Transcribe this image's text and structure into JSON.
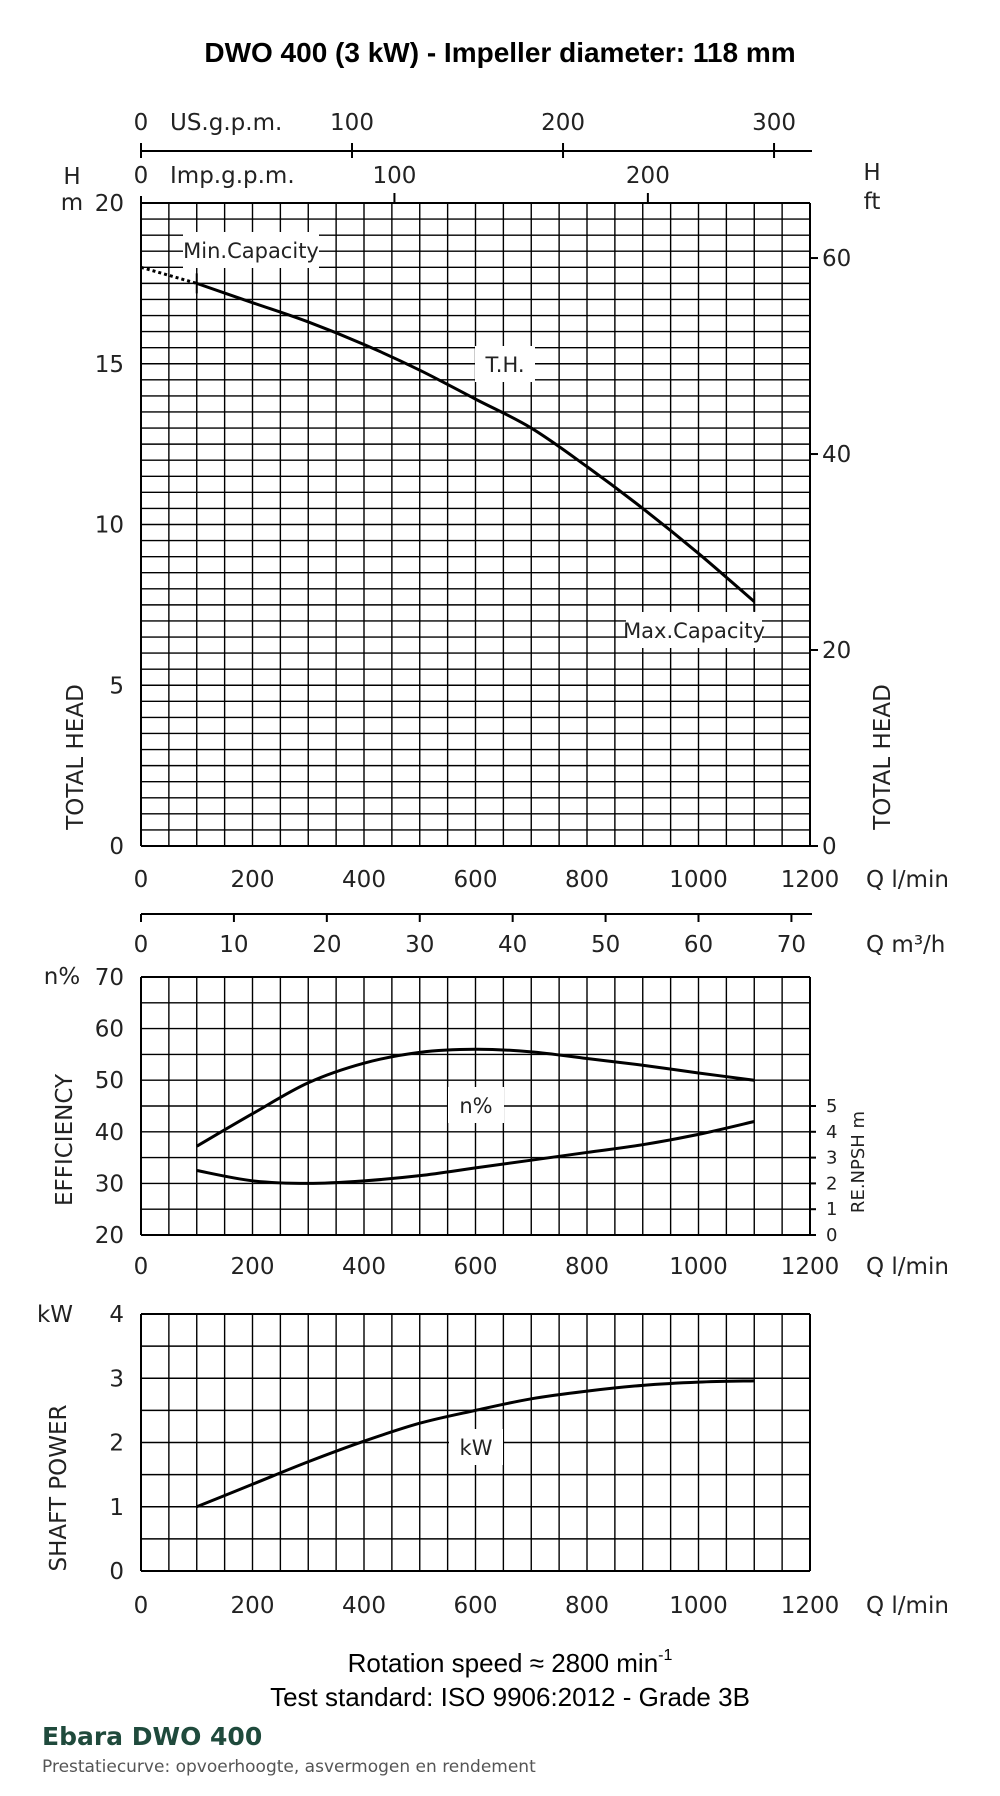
{
  "title": "DWO 400 (3 kW) - Impeller diameter: 118 mm",
  "footer": {
    "rotation_speed": "Rotation speed ≈ 2800 min",
    "rotation_speed_exp": "-1",
    "test_standard": "Test standard: ISO 9906:2012 - Grade 3B"
  },
  "brand": {
    "name": "Ebara DWO 400",
    "subtitle": "Prestatiecurve: opvoerhoogte, asvermogen en rendement"
  },
  "chart_data": [
    {
      "type": "line",
      "panel": "head",
      "ylabel": "TOTAL HEAD",
      "ylabel_right": "TOTAL HEAD",
      "y_unit_left": [
        "H",
        "m"
      ],
      "y_unit_right": [
        "H",
        "ft"
      ],
      "xlim": [
        0,
        1200
      ],
      "ylim": [
        0,
        20
      ],
      "y_ticks": [
        0,
        5,
        10,
        15,
        20
      ],
      "x_ticks": [
        0,
        200,
        400,
        600,
        800,
        1000,
        1200
      ],
      "x_unit": "Q  l/min",
      "right_ticks_ft": [
        0,
        20,
        40,
        60
      ],
      "top_axis_usgpm": {
        "label": "US.g.p.m.",
        "zero": "0",
        "ticks": [
          100,
          200,
          300
        ]
      },
      "top_axis_impgpm": {
        "label": "Imp.g.p.m.",
        "zero": "0",
        "ticks": [
          100,
          200
        ]
      },
      "grid": true,
      "series": [
        {
          "name": "T.H.",
          "x": [
            100,
            200,
            300,
            400,
            500,
            600,
            700,
            800,
            900,
            1000,
            1100
          ],
          "y": [
            17.5,
            16.9,
            16.3,
            15.6,
            14.8,
            13.9,
            13.0,
            11.8,
            10.5,
            9.1,
            7.6
          ]
        }
      ],
      "dotted_extension": {
        "x": [
          0,
          100
        ],
        "y": [
          18.0,
          17.5
        ]
      },
      "annotations": {
        "min_capacity": "Min.Capacity",
        "max_capacity": "Max.Capacity",
        "curve_label": "T.H."
      }
    },
    {
      "type": "line",
      "panel": "efficiency",
      "ylabel": "EFFICIENCY",
      "y_unit_left": "n%",
      "xlim": [
        0,
        1200
      ],
      "ylim": [
        20,
        70
      ],
      "y_ticks": [
        20,
        30,
        40,
        50,
        60,
        70
      ],
      "x_ticks": [
        0,
        200,
        400,
        600,
        800,
        1000,
        1200
      ],
      "x_unit": "Q  l/min",
      "top_axis_m3h": {
        "unit": "Q  m³/h",
        "ticks": [
          0,
          10,
          20,
          30,
          40,
          50,
          60,
          70
        ]
      },
      "right_axis": {
        "label": "RE.NPSH  m",
        "ticks": [
          0,
          1,
          2,
          3,
          4,
          5
        ],
        "range": [
          0,
          5
        ]
      },
      "grid": true,
      "series": [
        {
          "name": "n%",
          "x": [
            100,
            200,
            300,
            400,
            500,
            600,
            700,
            800,
            900,
            1000,
            1100
          ],
          "y": [
            37.2,
            43.5,
            49.5,
            53.3,
            55.4,
            56.0,
            55.5,
            54.2,
            52.9,
            51.4,
            50.0
          ]
        },
        {
          "name": "RE.NPSH",
          "x": [
            100,
            200,
            300,
            400,
            500,
            600,
            700,
            800,
            900,
            1000,
            1100
          ],
          "y": [
            2.5,
            2.1,
            2.0,
            2.1,
            2.3,
            2.6,
            2.9,
            3.2,
            3.5,
            3.9,
            4.4
          ]
        }
      ],
      "annotations": {
        "curve_label": "n%"
      }
    },
    {
      "type": "line",
      "panel": "shaft_power",
      "ylabel": "SHAFT POWER",
      "y_unit_left": "kW",
      "xlim": [
        0,
        1200
      ],
      "ylim": [
        0,
        4
      ],
      "y_ticks": [
        0,
        1,
        2,
        3,
        4
      ],
      "x_ticks": [
        0,
        200,
        400,
        600,
        800,
        1000,
        1200
      ],
      "x_unit": "Q  l/min",
      "grid": true,
      "series": [
        {
          "name": "kW",
          "x": [
            100,
            200,
            300,
            400,
            500,
            600,
            700,
            800,
            900,
            1000,
            1100
          ],
          "y": [
            1.0,
            1.35,
            1.7,
            2.02,
            2.3,
            2.5,
            2.68,
            2.8,
            2.89,
            2.94,
            2.96
          ]
        }
      ],
      "annotations": {
        "curve_label": "kW"
      }
    }
  ]
}
